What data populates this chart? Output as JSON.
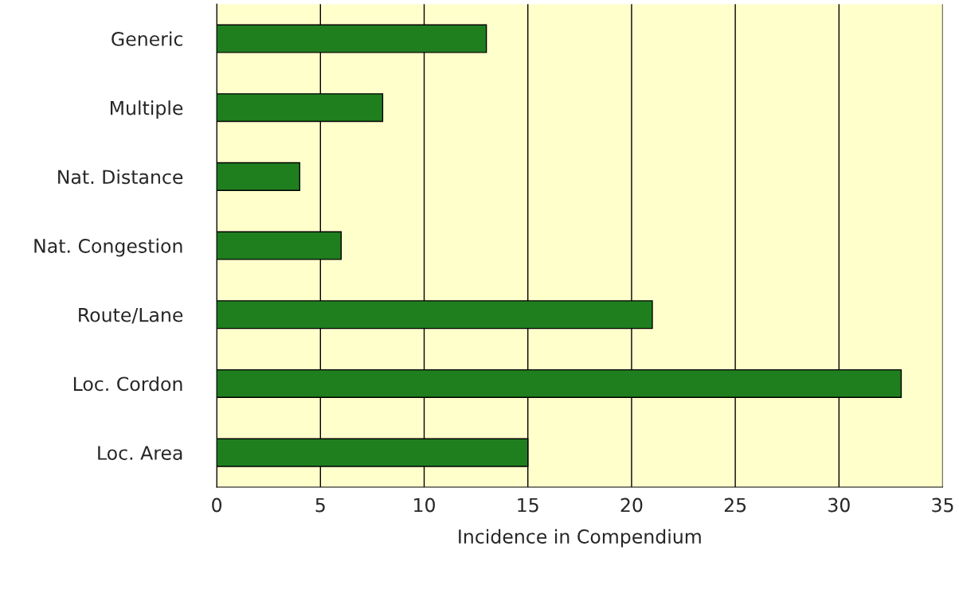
{
  "chart_data": {
    "type": "bar",
    "orientation": "horizontal",
    "xlabel": "Incidence in Compendium",
    "categories": [
      "Generic",
      "Multiple",
      "Nat. Distance",
      "Nat. Congestion",
      "Route/Lane",
      "Loc. Cordon",
      "Loc. Area"
    ],
    "values": [
      13,
      8,
      4,
      6,
      21,
      33,
      15
    ],
    "color": "#1f7f1f",
    "xlim": [
      0,
      35
    ],
    "xticks": [
      0,
      5,
      10,
      15,
      20,
      25,
      30,
      35
    ],
    "grid": "x",
    "legend": false
  }
}
